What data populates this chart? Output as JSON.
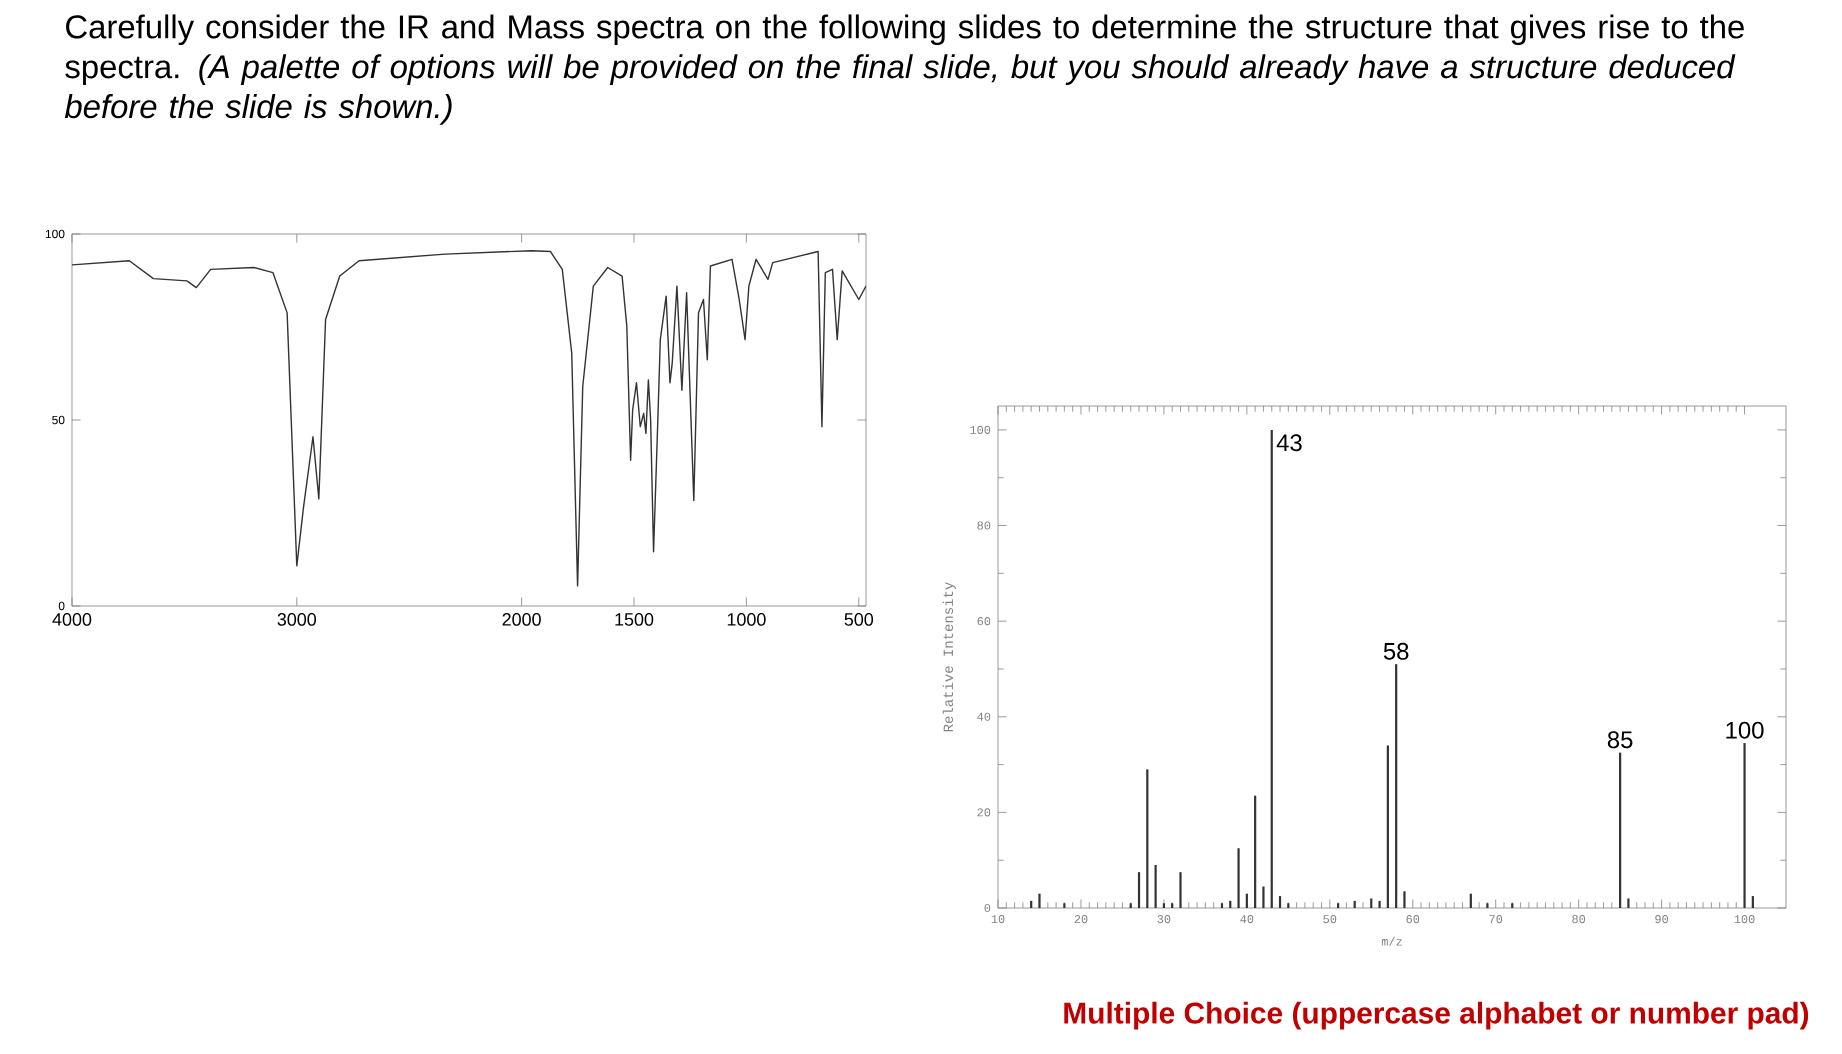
{
  "chart_data": [
    {
      "type": "other",
      "title": "Carefully consider the IR and Mass spectra on the following slides to determine the structure that gives rise to the spectra. *(A palette of options will be provided on the final slide, but you should already have a structure deduced before the slide is shown.)*",
      "annotations": [
        "Multiple Choice (uppercase alphabet or number pad)"
      ]
    },
    {
      "type": "line",
      "color": "#333333",
      "xlim": [
        4000,
        468
      ],
      "ylim": [
        0,
        100
      ],
      "xticks": [
        4000,
        3000,
        2000,
        1500,
        1000,
        500
      ],
      "yticks": [
        0,
        50,
        100
      ],
      "x": [
        4000,
        3745,
        3638,
        3489,
        3447,
        3383,
        3191,
        3106,
        3043,
        3000,
        2970,
        2928,
        2902,
        2872,
        2809,
        2723,
        2340,
        1957,
        1872,
        1819,
        1777,
        1751,
        1728,
        1681,
        1617,
        1553,
        1532,
        1515,
        1506,
        1489,
        1472,
        1457,
        1447,
        1436,
        1426,
        1413,
        1394,
        1383,
        1357,
        1340,
        1330,
        1309,
        1287,
        1266,
        1234,
        1213,
        1191,
        1174,
        1160,
        1064,
        1032,
        1006,
        989,
        957,
        904,
        883,
        681,
        664,
        649,
        617,
        596,
        574,
        500,
        468
      ],
      "values": [
        91.7,
        92.8,
        88,
        87.4,
        85.6,
        90.5,
        91,
        89.6,
        78.8,
        10.8,
        26.6,
        45.5,
        28.8,
        77,
        88.7,
        92.8,
        94.6,
        95.5,
        95.3,
        90.5,
        68,
        5.4,
        59,
        86,
        91,
        88.7,
        75.2,
        39.2,
        52.7,
        60,
        48.2,
        51.8,
        46.4,
        60.8,
        50,
        14.6,
        50,
        71.6,
        83.3,
        60,
        65.3,
        86,
        58,
        84.2,
        28.4,
        78.8,
        82.4,
        66.2,
        91.4,
        93.2,
        82.4,
        71.6,
        86,
        93.2,
        87.8,
        92.3,
        95.3,
        48.2,
        89.6,
        90.5,
        71.6,
        90.1,
        82.4,
        86
      ]
    },
    {
      "type": "bar",
      "color": "#333333",
      "xlabel": "m/z",
      "ylabel": "Relative Intensity",
      "xlim": [
        10,
        105
      ],
      "ylim": [
        0,
        105
      ],
      "xticks": [
        10,
        20,
        30,
        40,
        50,
        60,
        70,
        80,
        90,
        100
      ],
      "yticks": [
        0,
        20,
        40,
        60,
        80,
        100
      ],
      "x": [
        14,
        15,
        18,
        26,
        27,
        28,
        29,
        30,
        31,
        32,
        37,
        38,
        39,
        40,
        41,
        42,
        43,
        44,
        45,
        51,
        53,
        55,
        56,
        57,
        58,
        59,
        67,
        69,
        72,
        85,
        86,
        100,
        101
      ],
      "values": [
        1.5,
        3,
        1,
        1,
        7.5,
        29,
        9,
        1,
        1,
        7.5,
        1,
        1.5,
        12.5,
        3,
        23.5,
        4.5,
        100,
        2.5,
        1,
        1,
        1.5,
        2,
        1.5,
        34,
        51,
        3.5,
        3,
        1,
        1,
        32.5,
        2,
        34.5,
        2.5
      ],
      "annotations": [
        {
          "text": "43",
          "x": 43,
          "y": 100
        },
        {
          "text": "58",
          "x": 58,
          "y": 51
        },
        {
          "text": "85",
          "x": 85,
          "y": 32.5
        },
        {
          "text": "100",
          "x": 100,
          "y": 34.5
        }
      ]
    }
  ]
}
